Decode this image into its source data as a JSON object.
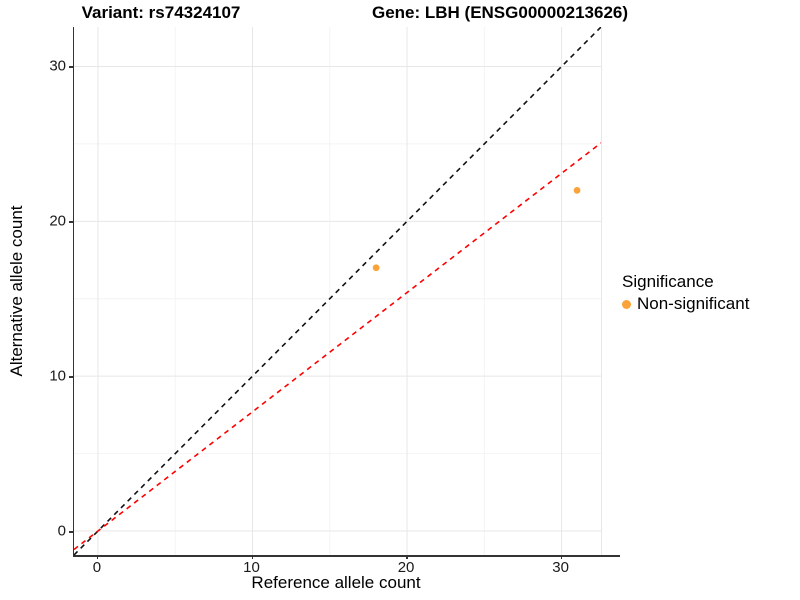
{
  "header": {
    "title_left": "Variant: rs74324107",
    "title_right": "Gene: LBH (ENSG00000213626)"
  },
  "chart_data": {
    "type": "scatter",
    "title_left": "Variant: rs74324107",
    "title_right": "Gene: LBH (ENSG00000213626)",
    "xlabel": "Reference allele count",
    "ylabel": "Alternative allele count",
    "xlim": [
      -1.55,
      32.55
    ],
    "ylim": [
      -1.55,
      32.55
    ],
    "x_major_ticks": [
      0,
      10,
      20,
      30
    ],
    "y_major_ticks": [
      0,
      10,
      20,
      30
    ],
    "x_minor_ticks": [
      5,
      15,
      25
    ],
    "y_minor_ticks": [
      5,
      15,
      25
    ],
    "grid": true,
    "points": [
      {
        "x": 18,
        "y": 17,
        "series": "Non-significant"
      },
      {
        "x": 31,
        "y": 22,
        "series": "Non-significant"
      }
    ],
    "point_color": "#F9A33A",
    "point_radius": 3.4,
    "lines": [
      {
        "name": "identity-line",
        "slope": 1,
        "intercept": 0,
        "style": "dashed",
        "color": "#111111"
      },
      {
        "name": "expected-ratio-line",
        "slope": 0.77,
        "intercept": 0,
        "style": "dashed",
        "color": "#FF0000"
      }
    ],
    "legend": {
      "position": "right",
      "title": "Significance",
      "items": [
        {
          "label": "Non-significant",
          "color": "#F9A33A"
        }
      ]
    },
    "colors": {
      "grid_major": "#e7e7e7",
      "grid_minor": "#f4f4f4",
      "axis_line": "#333333",
      "tick_text": "#1a1a1a"
    }
  }
}
